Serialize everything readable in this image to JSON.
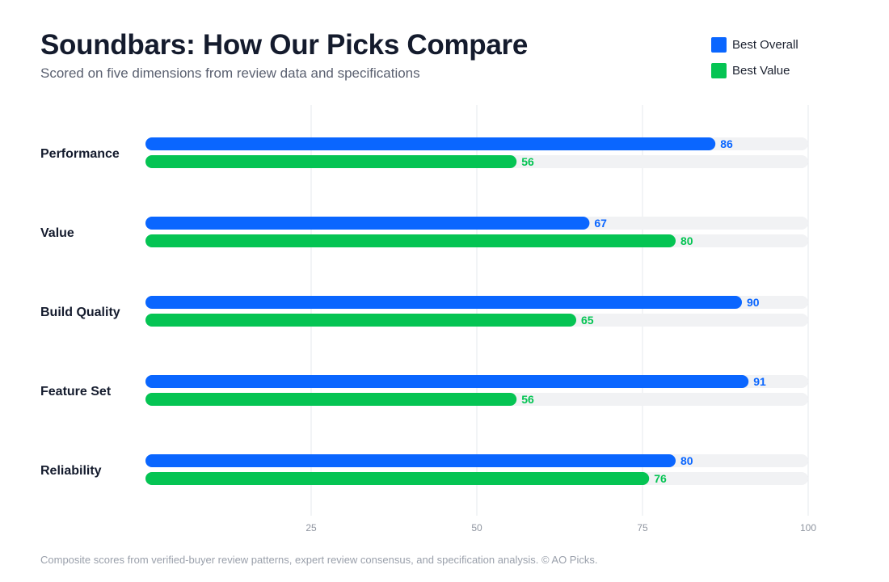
{
  "title": "Soundbars: How Our Picks Compare",
  "subtitle": "Scored on five dimensions from review data and specifications",
  "footnote": "Composite scores from verified-buyer review patterns, expert review consensus, and specification analysis. © AO Picks.",
  "legend": [
    {
      "label": "Best Overall",
      "color": "#0a66ff"
    },
    {
      "label": "Best Value",
      "color": "#05c453"
    }
  ],
  "chart_data": {
    "type": "bar",
    "orientation": "horizontal",
    "categories": [
      "Performance",
      "Value",
      "Build Quality",
      "Feature Set",
      "Reliability"
    ],
    "series": [
      {
        "name": "Best Overall",
        "color": "#0a66ff",
        "values": [
          86,
          67,
          90,
          91,
          80
        ]
      },
      {
        "name": "Best Value",
        "color": "#05c453",
        "values": [
          56,
          80,
          65,
          56,
          76
        ]
      }
    ],
    "xlim": [
      0,
      100
    ],
    "xticks": [
      25,
      50,
      75,
      100
    ],
    "grid": true,
    "legend_position": "top-right",
    "data_labels": true
  }
}
